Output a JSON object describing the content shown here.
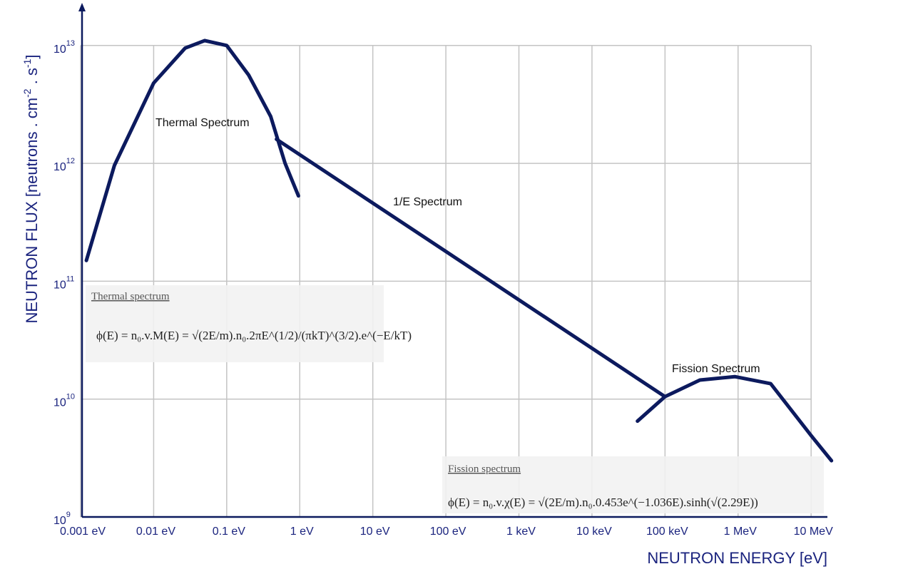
{
  "chart_data": {
    "type": "line",
    "x_label": "NEUTRON ENERGY [eV]",
    "y_label": [
      "NEUTRON FLUX [neutrons . cm",
      "-2",
      " . s",
      "-1",
      "]"
    ],
    "y_label_superscript": [
      false,
      true,
      false,
      true,
      false
    ],
    "log_x": true,
    "log_y": true,
    "grid": true,
    "xlim": [
      0.001,
      20000000
    ],
    "ylim": [
      1000000000,
      20000000000000
    ],
    "xticks": [
      {
        "value": 0.001,
        "label": "0.001 eV"
      },
      {
        "value": 0.01,
        "label": "0.01 eV"
      },
      {
        "value": 0.1,
        "label": "0.1 eV"
      },
      {
        "value": 1,
        "label": "1 eV"
      },
      {
        "value": 10,
        "label": "10 eV"
      },
      {
        "value": 100,
        "label": "100 eV"
      },
      {
        "value": 1000,
        "label": "1 keV"
      },
      {
        "value": 10000,
        "label": "10 keV"
      },
      {
        "value": 100000,
        "label": "100 keV"
      },
      {
        "value": 1000000,
        "label": "1 MeV"
      },
      {
        "value": 10000000,
        "label": "10 MeV"
      }
    ],
    "yticks": [
      {
        "value": 1000000000,
        "label": "10",
        "exponent": "9"
      },
      {
        "value": 10000000000,
        "label": "10",
        "exponent": "10"
      },
      {
        "value": 100000000000,
        "label": "10",
        "exponent": "11"
      },
      {
        "value": 1000000000000,
        "label": "10",
        "exponent": "12"
      },
      {
        "value": 10000000000000,
        "label": "10",
        "exponent": "13"
      }
    ],
    "series": [
      {
        "name": "Thermal Spectrum",
        "color": "#0c1a5e",
        "x": [
          0.0012,
          0.0029,
          0.01,
          0.027,
          0.05,
          0.1,
          0.2,
          0.4,
          0.63,
          0.96
        ],
        "values": [
          150000000000,
          960000000000,
          4800000000000,
          9500000000000,
          11000000000000,
          10000000000000,
          5600000000000,
          2500000000000,
          1000000000000,
          530000000000
        ]
      },
      {
        "name": "1/E Spectrum",
        "color": "#0c1a5e",
        "x": [
          0.48,
          95000
        ],
        "values": [
          1600000000000,
          10700000000
        ]
      },
      {
        "name": "Fission Spectrum",
        "color": "#0c1a5e",
        "x": [
          42000,
          100000,
          300000,
          900000,
          2800000,
          10000000,
          19000000
        ],
        "values": [
          6500000000,
          10500000000,
          14500000000,
          15500000000,
          13500000000,
          4900000000,
          3000000000
        ]
      }
    ],
    "annotations": [
      {
        "title": "Thermal spectrum",
        "formula": "ϕ(E) = n₀.v.M(E) = √(2E/m).n₀.2πE^(1/2)/(πkT)^(3/2).e^(−E/kT)"
      },
      {
        "title": "Fission spectrum",
        "formula": "ϕ(E) = n₀.v.χ(E) = √(2E/m).n₀.0.453e^(−1.036E).sinh(√(2.29E))"
      }
    ]
  }
}
